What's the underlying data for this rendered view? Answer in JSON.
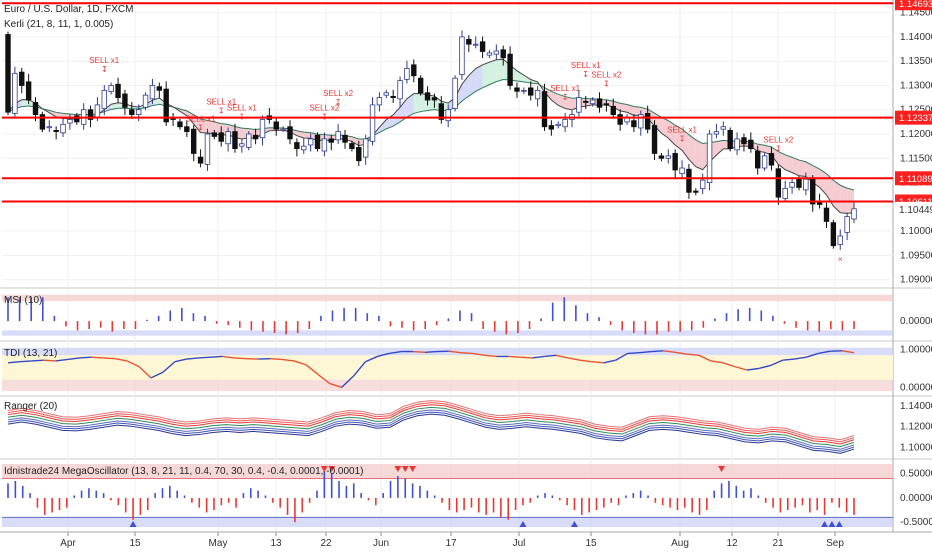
{
  "header": {
    "title": "Euro / U.S. Dollar, 1D, FXCM",
    "indicator": "Kerli (21, 8, 11, 1, 0.005)"
  },
  "colors": {
    "up": "#2f3e8f",
    "down": "#111111",
    "hline": "#ff0000",
    "pricebox": "#ff1f1f",
    "pink_fill": "#f4c6cc",
    "blue_fill": "#cfd6f7",
    "green_fill": "#cfeedd",
    "band_red": "#f3c7c7",
    "band_blue": "#c8cdf5",
    "band_yellow": "#fdf7d6"
  },
  "chart_data": [
    {
      "type": "candlestick",
      "title": "Euro / U.S. Dollar, 1D, FXCM",
      "x_ticks": [
        "Apr",
        "15",
        "May",
        "13",
        "22",
        "Jun",
        "17",
        "Jul",
        "15",
        "Aug",
        "12",
        "21",
        "Sep"
      ],
      "y_ticks": [
        "1.14500",
        "1.14000",
        "1.13500",
        "1.13000",
        "1.12500",
        "1.12000",
        "1.11500",
        "1.11000",
        "1.10500",
        "1.10000",
        "1.09500",
        "1.09000"
      ],
      "ylim": [
        1.0885,
        1.1476
      ],
      "horizontal_levels": [
        "1.14693",
        "1.12337",
        "1.11089",
        "1.10611"
      ],
      "last_price": "1.10449",
      "signals": [
        "SELL x1",
        "SELL x1",
        "SELL x1",
        "SELL x1",
        "SELL x2",
        "SELL x2",
        "SELL x1",
        "SELL x1",
        "SELL x2",
        "SELL x1",
        "SELL x2"
      ],
      "close": [
        1.1245,
        1.1325,
        1.13,
        1.127,
        1.124,
        1.121,
        1.1215,
        1.1205,
        1.122,
        1.123,
        1.1225,
        1.125,
        1.123,
        1.126,
        1.129,
        1.13,
        1.1275,
        1.1255,
        1.124,
        1.125,
        1.128,
        1.13,
        1.129,
        1.1225,
        1.123,
        1.1215,
        1.1205,
        1.116,
        1.114,
        1.12,
        1.1195,
        1.1185,
        1.1205,
        1.117,
        1.118,
        1.12,
        1.119,
        1.123,
        1.123,
        1.121,
        1.121,
        1.119,
        1.117,
        1.1175,
        1.119,
        1.117,
        1.119,
        1.1183,
        1.1205,
        1.1183,
        1.117,
        1.1145,
        1.119,
        1.126,
        1.1275,
        1.1285,
        1.1275,
        1.131,
        1.1335,
        1.132,
        1.1285,
        1.127,
        1.127,
        1.123,
        1.125,
        1.1315,
        1.14,
        1.1385,
        1.1385,
        1.137,
        1.1367,
        1.1371,
        1.1357,
        1.13,
        1.1288,
        1.129,
        1.128,
        1.129,
        1.1215,
        1.121,
        1.122,
        1.123,
        1.124,
        1.1275,
        1.1265,
        1.127,
        1.1255,
        1.1262,
        1.124,
        1.122,
        1.1235,
        1.1215,
        1.124,
        1.121,
        1.116,
        1.115,
        1.1155,
        1.1126,
        1.113,
        1.108,
        1.108,
        1.1105,
        1.12,
        1.1205,
        1.1215,
        1.117,
        1.119,
        1.118,
        1.117,
        1.113,
        1.1155,
        1.1136,
        1.107,
        1.1088,
        1.11,
        1.109,
        1.1107,
        1.1056,
        1.1055,
        1.102,
        1.097,
        1.099,
        1.103,
        1.1046
      ]
    },
    {
      "type": "bar",
      "title": "MSI (10)",
      "y_ticks": [
        "0.00000"
      ],
      "ylim": [
        -0.6,
        1.1
      ],
      "values": [
        0.9,
        0.9,
        0.9,
        0.9,
        0.2,
        -0.2,
        -0.35,
        -0.3,
        -0.25,
        -0.4,
        -0.3,
        -0.3,
        0.05,
        0.2,
        0.4,
        0.5,
        0.3,
        0.2,
        -0.1,
        -0.15,
        -0.25,
        -0.35,
        -0.4,
        -0.45,
        -0.5,
        -0.45,
        -0.3,
        0.2,
        0.4,
        0.5,
        0.5,
        0.3,
        0.2,
        -0.2,
        -0.25,
        -0.35,
        -0.3,
        -0.15,
        0.1,
        0.4,
        0.3,
        -0.3,
        -0.4,
        -0.5,
        -0.45,
        -0.3,
        0.1,
        0.7,
        0.9,
        0.6,
        0.3,
        0.15,
        -0.15,
        -0.35,
        -0.45,
        -0.5,
        -0.5,
        -0.4,
        -0.4,
        -0.35,
        -0.25,
        0.1,
        0.3,
        0.45,
        0.5,
        0.4,
        0.2,
        -0.1,
        -0.25,
        -0.35,
        -0.4,
        -0.3,
        -0.35,
        -0.3
      ]
    },
    {
      "type": "line",
      "title": "TDI (13, 21)",
      "y_ticks": [
        "1.00000",
        "0.00000"
      ],
      "ylim": [
        -0.15,
        1.15
      ],
      "values": [
        0.65,
        0.68,
        0.7,
        0.72,
        0.7,
        0.74,
        0.78,
        0.8,
        0.78,
        0.76,
        0.7,
        0.55,
        0.25,
        0.4,
        0.68,
        0.75,
        0.78,
        0.8,
        0.82,
        0.78,
        0.76,
        0.75,
        0.76,
        0.74,
        0.7,
        0.6,
        0.35,
        0.1,
        0.0,
        0.3,
        0.68,
        0.82,
        0.9,
        0.95,
        0.95,
        0.93,
        0.95,
        0.96,
        0.92,
        0.9,
        0.85,
        0.82,
        0.82,
        0.8,
        0.78,
        0.82,
        0.85,
        0.78,
        0.72,
        0.68,
        0.65,
        0.72,
        0.9,
        0.92,
        0.95,
        0.97,
        0.93,
        0.88,
        0.85,
        0.7,
        0.65,
        0.55,
        0.46,
        0.5,
        0.58,
        0.72,
        0.75,
        0.8,
        0.9,
        0.96,
        0.97,
        0.92
      ]
    },
    {
      "type": "line",
      "title": "Ranger (20)",
      "y_ticks": [
        "1.14000",
        "1.12000",
        "1.10000"
      ],
      "ylim": [
        1.092,
        1.1465
      ],
      "values": [
        1.129,
        1.131,
        1.129,
        1.126,
        1.123,
        1.1225,
        1.124,
        1.126,
        1.128,
        1.127,
        1.125,
        1.123,
        1.12,
        1.118,
        1.119,
        1.121,
        1.122,
        1.121,
        1.122,
        1.121,
        1.12,
        1.119,
        1.118,
        1.122,
        1.127,
        1.129,
        1.128,
        1.125,
        1.126,
        1.133,
        1.137,
        1.1385,
        1.1375,
        1.134,
        1.13,
        1.126,
        1.124,
        1.125,
        1.1265,
        1.125,
        1.124,
        1.122,
        1.12,
        1.116,
        1.114,
        1.113,
        1.118,
        1.123,
        1.124,
        1.123,
        1.121,
        1.119,
        1.118,
        1.115,
        1.112,
        1.111,
        1.113,
        1.112,
        1.108,
        1.104,
        1.103,
        1.101,
        1.105
      ]
    },
    {
      "type": "bar",
      "title": "Idnistrade24 MegaOscillator (13, 8, 21, 11, 0.4, 70, 30, 0.4, -0.4, 0.0001, -0.0001)",
      "y_ticks": [
        "0.50000",
        "0.00000",
        "-0.50000"
      ],
      "ylim": [
        -0.62,
        0.72
      ],
      "values": [
        0.3,
        0.35,
        0.25,
        0.1,
        -0.2,
        -0.35,
        -0.3,
        -0.25,
        -0.2,
        0.05,
        0.15,
        0.2,
        0.15,
        0.1,
        -0.05,
        -0.15,
        -0.3,
        -0.45,
        -0.35,
        -0.25,
        0.1,
        0.2,
        0.25,
        0.15,
        0.05,
        -0.1,
        -0.2,
        -0.3,
        -0.25,
        -0.15,
        -0.1,
        -0.2,
        0.1,
        0.2,
        0.15,
        0.05,
        -0.1,
        -0.2,
        -0.35,
        -0.5,
        -0.3,
        -0.1,
        0.15,
        0.6,
        0.5,
        0.35,
        0.25,
        0.3,
        0.1,
        -0.05,
        -0.15,
        0.1,
        0.35,
        0.45,
        0.4,
        0.3,
        0.25,
        0.15,
        0.05,
        -0.1,
        -0.25,
        -0.3,
        -0.25,
        -0.2,
        -0.3,
        -0.35,
        -0.3,
        -0.4,
        -0.45,
        -0.25,
        -0.15,
        -0.1,
        0.05,
        0.1,
        0.05,
        -0.05,
        -0.15,
        -0.25,
        -0.35,
        -0.3,
        -0.25,
        -0.2,
        -0.1,
        -0.15,
        0.05,
        0.1,
        0.15,
        0.05,
        -0.1,
        -0.15,
        -0.2,
        -0.25,
        -0.2,
        -0.3,
        -0.35,
        -0.25,
        0.15,
        0.3,
        0.35,
        0.25,
        0.15,
        0.2,
        0.05,
        -0.1,
        -0.2,
        -0.3,
        -0.25,
        -0.2,
        -0.15,
        -0.3,
        -0.25,
        -0.35,
        -0.1,
        -0.2,
        -0.3,
        -0.35
      ]
    }
  ]
}
